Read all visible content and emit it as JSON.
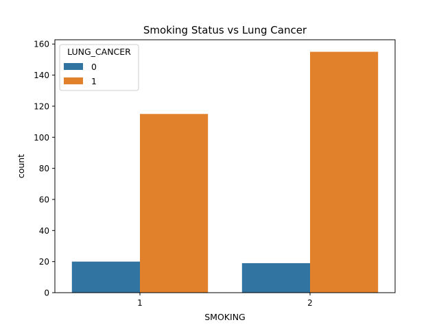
{
  "chart_data": {
    "type": "bar",
    "title": "Smoking Status vs Lung Cancer",
    "xlabel": "SMOKING",
    "ylabel": "count",
    "categories": [
      "1",
      "2"
    ],
    "series": [
      {
        "name": "0",
        "color": "#3274a1",
        "values": [
          20,
          19
        ]
      },
      {
        "name": "1",
        "color": "#e1812c",
        "values": [
          115,
          155
        ]
      }
    ],
    "ylim": [
      0,
      162.75
    ],
    "yticks": [
      0,
      20,
      40,
      60,
      80,
      100,
      120,
      140,
      160
    ],
    "legend": {
      "title": "LUNG_CANCER",
      "placement": "top-left"
    },
    "grid": false
  }
}
